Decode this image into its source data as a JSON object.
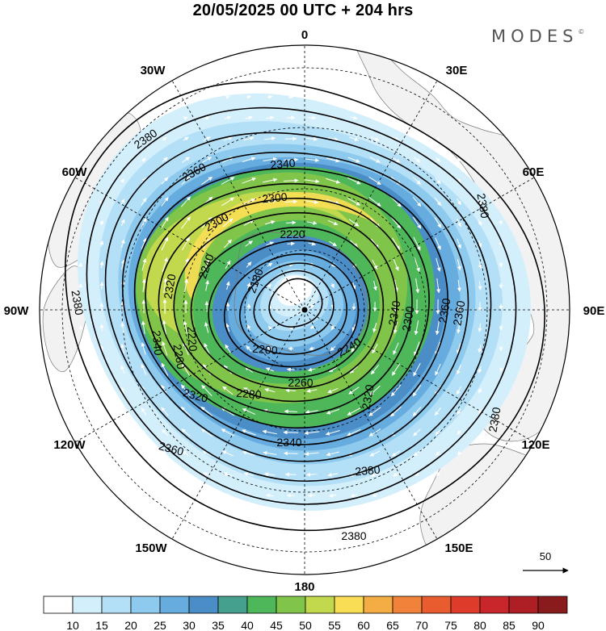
{
  "header": {
    "title": "20/05/2025  00 UTC  + 204 hrs",
    "logo": "MODES",
    "logo_mark": "©"
  },
  "map": {
    "projection": "south-polar-stereographic",
    "land_color": "#f2f2f2",
    "coast_color": "#7a7a7a",
    "longitude_labels": [
      "0",
      "30E",
      "60E",
      "90E",
      "120E",
      "150E",
      "180",
      "150W",
      "120W",
      "90W",
      "60W",
      "30W"
    ],
    "contour_labels": [
      "2380",
      "2360",
      "2340",
      "2300",
      "2300",
      "2220",
      "2180",
      "2240",
      "2320",
      "2340",
      "2260",
      "2220",
      "2200",
      "2240",
      "2260",
      "2280",
      "2320",
      "2340",
      "2360",
      "2380",
      "2380",
      "2360",
      "2380",
      "2300",
      "2340",
      "2380",
      "2360",
      "2380",
      "2320"
    ],
    "wind_scale_value": "50"
  },
  "colorbar": {
    "ticks": [
      "10",
      "15",
      "20",
      "25",
      "30",
      "35",
      "40",
      "45",
      "50",
      "55",
      "60",
      "65",
      "70",
      "75",
      "80",
      "85",
      "90"
    ],
    "colors": [
      "#ffffff",
      "#d4effc",
      "#b4e0f7",
      "#8ecaee",
      "#66acdf",
      "#4b8dc6",
      "#46a08e",
      "#4db75a",
      "#80c44a",
      "#c2d94e",
      "#f9de55",
      "#f4ad44",
      "#f0823a",
      "#e95c30",
      "#de3b2b",
      "#c8262a",
      "#ad1f24",
      "#8a1b1d"
    ]
  }
}
